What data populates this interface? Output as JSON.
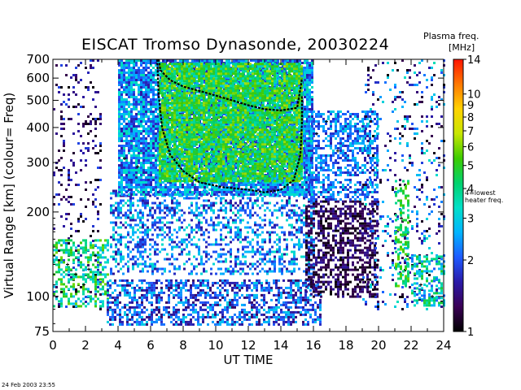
{
  "chart_data": {
    "type": "heatmap",
    "title": "EISCAT Tromso Dynasonde,  20030224",
    "xlabel": "UT TIME",
    "ylabel": "Virtual Range [km]    (colour= Freq)",
    "x_range": [
      0,
      24
    ],
    "x_ticks": [
      "0",
      "2",
      "4",
      "6",
      "8",
      "10",
      "12",
      "14",
      "16",
      "18",
      "20",
      "22",
      "24"
    ],
    "y_scale": "log",
    "y_range": [
      75,
      700
    ],
    "y_ticks": [
      {
        "value": 75,
        "label": "75"
      },
      {
        "value": 100,
        "label": "100"
      },
      {
        "value": 200,
        "label": "200"
      },
      {
        "value": 300,
        "label": "300"
      },
      {
        "value": 400,
        "label": "400"
      },
      {
        "value": 500,
        "label": "500"
      },
      {
        "value": 600,
        "label": "600"
      },
      {
        "value": 700,
        "label": "700"
      }
    ],
    "colorbar": {
      "title_line1": "Plasma freq.",
      "title_line2": "[MHz]",
      "scale": "log",
      "range": [
        1,
        14
      ],
      "ticks": [
        {
          "value": 1,
          "label": "1"
        },
        {
          "value": 2,
          "label": "2"
        },
        {
          "value": 3,
          "label": "3"
        },
        {
          "value": 4,
          "label": "4"
        },
        {
          "value": 5,
          "label": "5"
        },
        {
          "value": 6,
          "label": "6"
        },
        {
          "value": 7,
          "label": "7"
        },
        {
          "value": 8,
          "label": "8"
        },
        {
          "value": 9,
          "label": "9"
        },
        {
          "value": 10,
          "label": "10"
        },
        {
          "value": 14,
          "label": "14"
        }
      ],
      "colors": [
        "#000000",
        "#3a0055",
        "#2a1aa8",
        "#1e5aff",
        "#00b4ff",
        "#00e0c8",
        "#00d26e",
        "#3ccc00",
        "#c8e600",
        "#ffd200",
        "#ff7800",
        "#ff1400"
      ],
      "annotation_line1": "4=lowest",
      "annotation_line2": "heater freq."
    },
    "regions": [
      {
        "t0": 0.0,
        "t1": 3.0,
        "h0": 90,
        "h1": 700,
        "f0": 1.0,
        "f1": 2.0,
        "density": 0.12
      },
      {
        "t0": 0.0,
        "t1": 3.4,
        "h0": 92,
        "h1": 160,
        "f0": 2.5,
        "f1": 6.0,
        "density": 0.45
      },
      {
        "t0": 3.3,
        "t1": 16.5,
        "h0": 80,
        "h1": 115,
        "f0": 1.3,
        "f1": 3.0,
        "density": 0.55
      },
      {
        "t0": 3.5,
        "t1": 16.0,
        "h0": 120,
        "h1": 240,
        "f0": 1.5,
        "f1": 3.4,
        "density": 0.4
      },
      {
        "t0": 4.0,
        "t1": 16.0,
        "h0": 230,
        "h1": 700,
        "f0": 1.6,
        "f1": 3.6,
        "density": 0.85
      },
      {
        "t0": 6.5,
        "t1": 15.3,
        "h0": 260,
        "h1": 680,
        "f0": 3.5,
        "f1": 6.5,
        "density": 0.85
      },
      {
        "t0": 15.5,
        "t1": 20.0,
        "h0": 100,
        "h1": 220,
        "f0": 1.0,
        "f1": 1.6,
        "density": 0.55
      },
      {
        "t0": 15.5,
        "t1": 20.0,
        "h0": 220,
        "h1": 460,
        "f0": 1.6,
        "f1": 3.0,
        "density": 0.5
      },
      {
        "t0": 19.0,
        "t1": 24.0,
        "h0": 90,
        "h1": 700,
        "f0": 1.0,
        "f1": 3.5,
        "density": 0.14
      },
      {
        "t0": 21.0,
        "t1": 21.8,
        "h0": 110,
        "h1": 260,
        "f0": 3.5,
        "f1": 6.0,
        "density": 0.4
      },
      {
        "t0": 22.0,
        "t1": 24.0,
        "h0": 92,
        "h1": 140,
        "f0": 2.0,
        "f1": 5.0,
        "density": 0.45
      }
    ],
    "trace_outline": [
      [
        6.5,
        700
      ],
      [
        6.6,
        640
      ],
      [
        7.2,
        590
      ],
      [
        8.0,
        560
      ],
      [
        9.0,
        540
      ],
      [
        10.0,
        520
      ],
      [
        11.0,
        500
      ],
      [
        12.0,
        480
      ],
      [
        13.0,
        465
      ],
      [
        14.0,
        460
      ],
      [
        15.0,
        470
      ],
      [
        15.2,
        550
      ],
      [
        15.3,
        600
      ]
    ],
    "trace_inner": [
      [
        6.4,
        700
      ],
      [
        6.5,
        520
      ],
      [
        6.7,
        400
      ],
      [
        7.2,
        320
      ],
      [
        8.0,
        280
      ],
      [
        9.0,
        255
      ],
      [
        10.5,
        245
      ],
      [
        12.0,
        240
      ],
      [
        13.0,
        235
      ],
      [
        14.0,
        240
      ],
      [
        14.8,
        260
      ],
      [
        15.2,
        320
      ],
      [
        15.3,
        420
      ],
      [
        15.3,
        520
      ]
    ],
    "cross_markers": [
      [
        0.9,
        130
      ],
      [
        1.4,
        120
      ],
      [
        1.9,
        110
      ],
      [
        2.2,
        125
      ],
      [
        2.6,
        140
      ],
      [
        4.4,
        310
      ],
      [
        5.2,
        290
      ],
      [
        16.2,
        380
      ],
      [
        16.8,
        420
      ],
      [
        17.5,
        330
      ],
      [
        21.4,
        190
      ],
      [
        22.6,
        110
      ],
      [
        23.3,
        100
      ]
    ],
    "footer_text": "24 Feb 2003 23:55"
  }
}
